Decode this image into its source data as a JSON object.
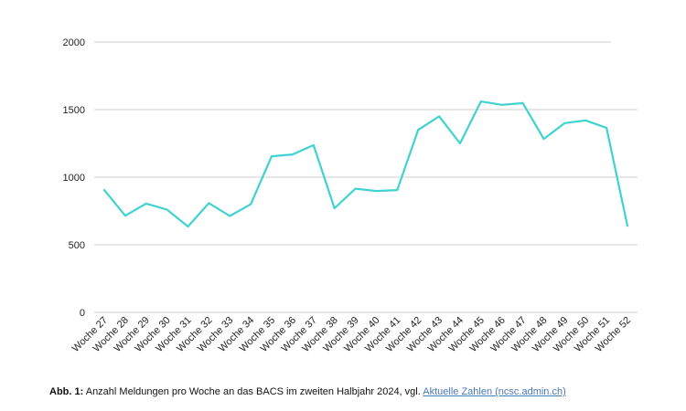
{
  "chart_data": {
    "type": "line",
    "title": "",
    "xlabel": "",
    "ylabel": "",
    "ylim": [
      0,
      2000
    ],
    "yticks": [
      0,
      500,
      1000,
      1500,
      2000
    ],
    "grid": true,
    "categories": [
      "Woche 27",
      "Woche 28",
      "Woche 29",
      "Woche 30",
      "Woche 31",
      "Woche 32",
      "Woche 33",
      "Woche 34",
      "Woche 35",
      "Woche 36",
      "Woche 37",
      "Woche 38",
      "Woche 39",
      "Woche 40",
      "Woche 41",
      "Woche 42",
      "Woche 43",
      "Woche 44",
      "Woche 45",
      "Woche 46",
      "Woche 47",
      "Woche 48",
      "Woche 49",
      "Woche 50",
      "Woche 51",
      "Woche 52"
    ],
    "series": [
      {
        "color": "#3fd3d0",
        "values": [
          905,
          715,
          805,
          760,
          635,
          808,
          713,
          800,
          1155,
          1168,
          1237,
          770,
          915,
          898,
          905,
          1350,
          1450,
          1250,
          1560,
          1535,
          1548,
          1283,
          1400,
          1420,
          1365,
          640
        ]
      }
    ]
  },
  "caption": {
    "label": "Abb. 1:",
    "text": " Anzahl Meldungen pro Woche an das BACS im zweiten Halbjahr 2024, vgl. ",
    "link_text": "Aktuelle Zahlen (ncsc.admin.ch)"
  }
}
